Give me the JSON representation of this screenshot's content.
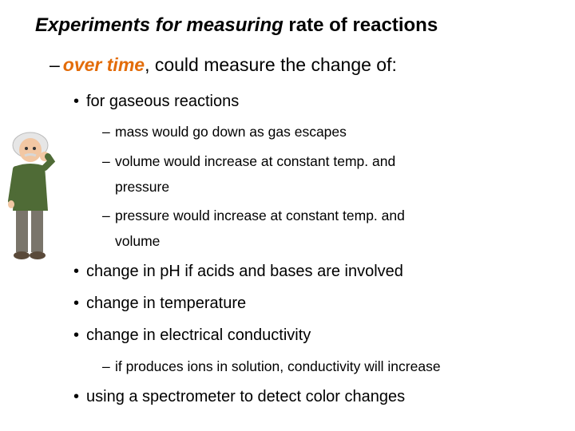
{
  "slide": {
    "title_italic": "Experiments for measuring",
    "title_rest": " rate of reactions",
    "level1": {
      "dash": "–",
      "accent": "over time",
      "rest": ", could measure the change of:"
    },
    "items": [
      {
        "text": "for gaseous reactions"
      },
      {
        "text": "mass would go down as gas escapes"
      },
      {
        "text": "volume would increase at constant temp. and"
      },
      {
        "text": "pressure"
      },
      {
        "text": "pressure would increase at constant temp. and"
      },
      {
        "text": "volume"
      },
      {
        "text": "change in pH if acids and bases are involved"
      },
      {
        "text": "change in temperature"
      },
      {
        "text": "change in electrical conductivity"
      },
      {
        "text": "if produces ions in solution, conductivity will increase"
      },
      {
        "text": "using a spectrometer to detect color changes"
      }
    ],
    "bullet_glyph": "•",
    "dash_glyph": "–"
  },
  "colors": {
    "accent": "#e36c09",
    "text": "#000000",
    "background": "#ffffff"
  },
  "figure": {
    "icon": "thinking-scientist-figure"
  }
}
